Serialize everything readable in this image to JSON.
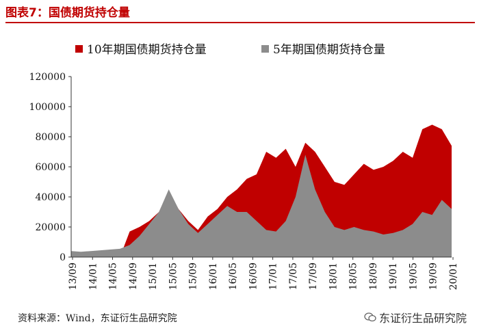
{
  "figure": {
    "title": "图表7：国债期货持仓量"
  },
  "source": {
    "text": "资料来源：Wind，东证衍生品研究院"
  },
  "watermark": {
    "text": "东证衍生品研究院",
    "icon": "wechat-icon"
  },
  "colors": {
    "accent": "#c00000",
    "series10": "#c00000",
    "series5": "#8c8c8c"
  },
  "chart_data": {
    "type": "area",
    "stacked": false,
    "title": "",
    "xlabel": "",
    "ylabel": "",
    "ylim": [
      0,
      120000
    ],
    "yticks": [
      0,
      20000,
      40000,
      60000,
      80000,
      100000,
      120000
    ],
    "ytick_labels": [
      "0",
      "20000",
      "40000",
      "60000",
      "80000",
      "100000",
      "120000"
    ],
    "xtick_labels": [
      "13/09",
      "14/01",
      "14/05",
      "14/09",
      "15/01",
      "15/05",
      "15/09",
      "16/01",
      "16/05",
      "16/09",
      "17/01",
      "17/05",
      "17/09",
      "18/01",
      "18/05",
      "18/09",
      "19/01",
      "19/05",
      "19/09",
      "20/01"
    ],
    "legend_position": "top",
    "x": [
      "13/09",
      "13/11",
      "14/01",
      "14/03",
      "14/05",
      "14/07",
      "14/09",
      "14/11",
      "15/01",
      "15/03",
      "15/05",
      "15/07",
      "15/09",
      "15/11",
      "16/01",
      "16/03",
      "16/05",
      "16/07",
      "16/09",
      "16/11",
      "17/01",
      "17/03",
      "17/05",
      "17/07",
      "17/09",
      "17/11",
      "18/01",
      "18/03",
      "18/05",
      "18/07",
      "18/09",
      "18/11",
      "19/01",
      "19/03",
      "19/05",
      "19/07",
      "19/09",
      "19/11",
      "20/01",
      "20/03"
    ],
    "series": [
      {
        "name": "10年期国债期货持仓量",
        "color": "#c00000",
        "values": [
          0,
          0,
          0,
          0,
          0,
          0,
          17000,
          20000,
          24000,
          30000,
          44000,
          32000,
          24000,
          18000,
          27000,
          32000,
          40000,
          45000,
          52000,
          55000,
          70000,
          66000,
          72000,
          60000,
          76000,
          70000,
          60000,
          50000,
          48000,
          55000,
          62000,
          58000,
          60000,
          64000,
          70000,
          66000,
          85000,
          88000,
          85000,
          74000
        ]
      },
      {
        "name": "5年期国债期货持仓量",
        "color": "#8c8c8c",
        "values": [
          4000,
          3500,
          4000,
          4500,
          5000,
          5500,
          8000,
          14000,
          22000,
          30000,
          45000,
          32000,
          22000,
          16000,
          22000,
          28000,
          34000,
          30000,
          30000,
          24000,
          18000,
          17000,
          24000,
          40000,
          68000,
          45000,
          30000,
          20000,
          18000,
          20000,
          18000,
          17000,
          15000,
          16000,
          18000,
          22000,
          30000,
          28000,
          38000,
          32000
        ]
      }
    ]
  }
}
